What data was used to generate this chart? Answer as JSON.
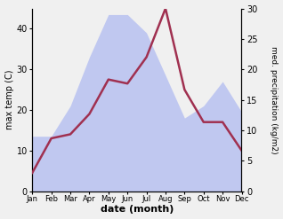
{
  "months": [
    "Jan",
    "Feb",
    "Mar",
    "Apr",
    "May",
    "Jun",
    "Jul",
    "Aug",
    "Sep",
    "Oct",
    "Nov",
    "Dec"
  ],
  "temp": [
    4.5,
    13.0,
    14.0,
    19.0,
    27.5,
    26.5,
    33.0,
    45.0,
    25.0,
    17.0,
    17.0,
    10.0
  ],
  "precip": [
    9.0,
    9.0,
    14.0,
    22.0,
    29.0,
    29.0,
    26.0,
    19.0,
    12.0,
    14.0,
    18.0,
    13.0
  ],
  "temp_color": "#a03050",
  "precip_color_fill": "#c0c8f0",
  "ylabel_left": "max temp (C)",
  "ylabel_right": "med. precipitation (kg/m2)",
  "xlabel": "date (month)",
  "ylim_left": [
    0,
    45
  ],
  "ylim_right": [
    0,
    30
  ],
  "temp_linewidth": 1.8,
  "bg_color": "#f0f0f0"
}
